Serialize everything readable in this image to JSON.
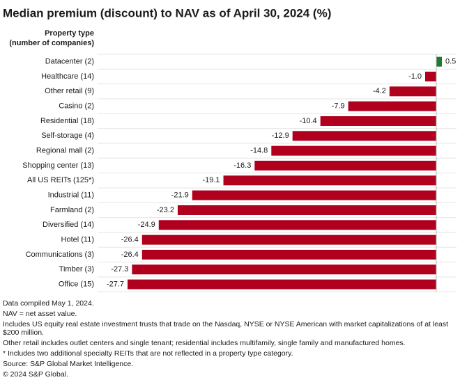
{
  "chart_data": {
    "type": "hbar",
    "title": "Median premium (discount) to NAV as of April 30, 2024 (%)",
    "category_axis_title": [
      "Property type",
      "(number of companies)"
    ],
    "categories": [
      "Datacenter (2)",
      "Healthcare (14)",
      "Other retail (9)",
      "Casino (2)",
      "Residential (18)",
      "Self-storage (4)",
      "Regional mall (2)",
      "Shopping center (13)",
      "All US REITs (125*)",
      "Industrial (11)",
      "Farmland (2)",
      "Diversified (14)",
      "Hotel (11)",
      "Communications (3)",
      "Timber (3)",
      "Office (15)"
    ],
    "values": [
      0.5,
      -1.0,
      -4.2,
      -7.9,
      -10.4,
      -12.9,
      -14.8,
      -16.3,
      -19.1,
      -21.9,
      -23.2,
      -24.9,
      -26.4,
      -26.4,
      -27.3,
      -27.7
    ],
    "value_labels": [
      "0.5",
      "-1.0",
      "-4.2",
      "-7.9",
      "-10.4",
      "-12.9",
      "-14.8",
      "-16.3",
      "-19.1",
      "-21.9",
      "-23.2",
      "-24.9",
      "-26.4",
      "-26.4",
      "-27.3",
      "-27.7"
    ],
    "color": "#b0001e",
    "positive_color": "#1e7a33",
    "grid": true,
    "notes": [
      "Data compiled May 1, 2024.",
      "NAV = net asset value.",
      "Includes US equity real estate investment trusts that trade on the Nasdaq, NYSE or NYSE American with market capitalizations of at least $200 million.",
      "Other retail includes outlet centers and single tenant; residential includes multifamily, single family and manufactured homes.",
      "* Includes two additional specialty REITs that are not reflected in a property type category.",
      "Source: S&P Global Market Intelligence.",
      "© 2024 S&P Global."
    ]
  }
}
